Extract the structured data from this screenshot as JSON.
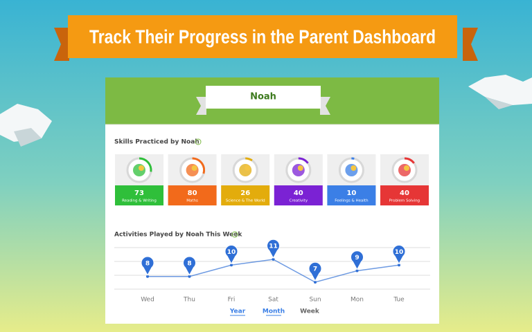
{
  "banner": {
    "title": "Track Their Progress in the Parent Dashboard"
  },
  "card": {
    "name": "Noah"
  },
  "skills": {
    "title": "Skills Practiced by Noah",
    "items": [
      {
        "value": 73,
        "label": "Reading & Writing",
        "color": "#2fbf3a"
      },
      {
        "value": 80,
        "label": "Maths",
        "color": "#f26a1b"
      },
      {
        "value": 26,
        "label": "Science & The World",
        "color": "#e3ac0c"
      },
      {
        "value": 40,
        "label": "Creativity",
        "color": "#7b22d4"
      },
      {
        "value": 10,
        "label": "Feelings & Health",
        "color": "#3b7fe6"
      },
      {
        "value": 40,
        "label": "Problem Solving",
        "color": "#e63636"
      }
    ]
  },
  "activities": {
    "title": "Activities Played by Noah This Week",
    "chart_data": {
      "type": "line",
      "categories": [
        "Wed",
        "Thu",
        "Fri",
        "Sat",
        "Sun",
        "Mon",
        "Tue"
      ],
      "values": [
        8,
        8,
        10,
        11,
        7,
        9,
        10
      ],
      "color": "#2f6fd6"
    },
    "tabs": [
      "Year",
      "Month",
      "Week"
    ]
  }
}
